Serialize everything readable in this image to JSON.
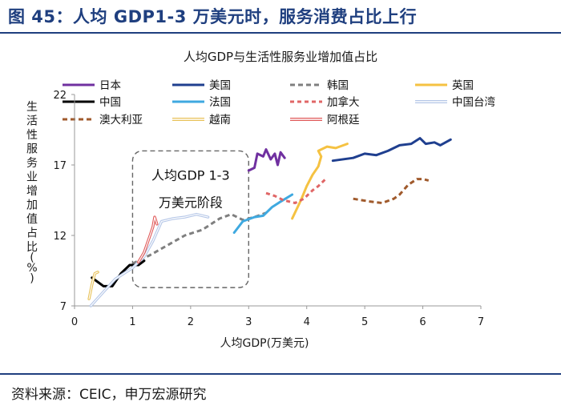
{
  "figure_title": "图 45：人均 GDP1-3 万美元时，服务消费占比上行",
  "source": "资料来源：CEIC，申万宏源研究",
  "chart_data": {
    "type": "line",
    "title": "人均GDP与生活性服务业增加值占比",
    "xlabel": "人均GDP(万美元)",
    "ylabel": "生活性服务业增加值占比(%)",
    "xlim": [
      0,
      7
    ],
    "ylim": [
      7,
      22
    ],
    "xticks": [
      0,
      1,
      2,
      3,
      4,
      5,
      6,
      7
    ],
    "yticks": [
      7,
      12,
      17,
      22
    ],
    "annotation": {
      "line1": "人均GDP 1-3",
      "line2": "万美元阶段",
      "x_range": [
        1.0,
        3.0
      ],
      "y_range": [
        8.3,
        18.0
      ]
    },
    "series": [
      {
        "name": "日本",
        "color": "#7030a0",
        "dash": "",
        "double": false,
        "width": 3,
        "points": [
          [
            3.0,
            16.6
          ],
          [
            3.1,
            16.8
          ],
          [
            3.15,
            17.8
          ],
          [
            3.25,
            17.6
          ],
          [
            3.3,
            18.1
          ],
          [
            3.38,
            17.4
          ],
          [
            3.45,
            17.8
          ],
          [
            3.5,
            17.0
          ],
          [
            3.55,
            17.9
          ],
          [
            3.62,
            17.5
          ]
        ]
      },
      {
        "name": "美国",
        "color": "#1f3f8f",
        "dash": "",
        "double": false,
        "width": 3,
        "points": [
          [
            4.45,
            17.3
          ],
          [
            4.8,
            17.5
          ],
          [
            5.0,
            17.8
          ],
          [
            5.2,
            17.7
          ],
          [
            5.4,
            18.0
          ],
          [
            5.6,
            18.4
          ],
          [
            5.8,
            18.5
          ],
          [
            5.95,
            18.9
          ],
          [
            6.05,
            18.5
          ],
          [
            6.2,
            18.6
          ],
          [
            6.3,
            18.4
          ],
          [
            6.48,
            18.8
          ]
        ]
      },
      {
        "name": "韩国",
        "color": "#7f7f7f",
        "dash": "6,4",
        "double": false,
        "width": 3,
        "points": [
          [
            1.0,
            10.0
          ],
          [
            1.3,
            10.6
          ],
          [
            1.6,
            11.3
          ],
          [
            1.9,
            12.0
          ],
          [
            2.2,
            12.4
          ],
          [
            2.5,
            13.2
          ],
          [
            2.7,
            13.5
          ],
          [
            2.9,
            13.1
          ],
          [
            3.1,
            13.3
          ],
          [
            3.3,
            13.6
          ]
        ]
      },
      {
        "name": "英国",
        "color": "#f5c242",
        "dash": "",
        "double": false,
        "width": 3,
        "points": [
          [
            3.75,
            13.2
          ],
          [
            3.9,
            14.5
          ],
          [
            4.0,
            15.5
          ],
          [
            4.1,
            16.3
          ],
          [
            4.2,
            16.9
          ],
          [
            4.25,
            17.6
          ],
          [
            4.2,
            18.0
          ],
          [
            4.35,
            18.3
          ],
          [
            4.5,
            18.2
          ],
          [
            4.7,
            18.5
          ]
        ]
      },
      {
        "name": "中国",
        "color": "#000000",
        "dash": "",
        "double": false,
        "width": 3,
        "points": [
          [
            0.3,
            9.0
          ],
          [
            0.4,
            8.7
          ],
          [
            0.5,
            8.4
          ],
          [
            0.65,
            8.4
          ],
          [
            0.8,
            9.3
          ],
          [
            0.95,
            9.9
          ],
          [
            1.1,
            9.9
          ],
          [
            1.2,
            10.2
          ]
        ]
      },
      {
        "name": "法国",
        "color": "#3fa9e0",
        "dash": "",
        "double": false,
        "width": 3,
        "points": [
          [
            2.75,
            12.2
          ],
          [
            2.9,
            13.0
          ],
          [
            3.1,
            13.3
          ],
          [
            3.25,
            13.4
          ],
          [
            3.4,
            14.0
          ],
          [
            3.55,
            14.4
          ],
          [
            3.75,
            14.9
          ]
        ]
      },
      {
        "name": "加拿大",
        "color": "#e06666",
        "dash": "5,4",
        "double": false,
        "width": 3,
        "points": [
          [
            3.3,
            15.0
          ],
          [
            3.45,
            14.8
          ],
          [
            3.6,
            14.5
          ],
          [
            3.8,
            14.3
          ],
          [
            3.95,
            14.6
          ],
          [
            4.1,
            15.2
          ],
          [
            4.2,
            15.5
          ],
          [
            4.35,
            16.1
          ]
        ]
      },
      {
        "name": "中国台湾",
        "color": "#b4c6e7",
        "dash": "",
        "double": true,
        "width": 3,
        "points": [
          [
            0.28,
            7.0
          ],
          [
            0.5,
            8.0
          ],
          [
            0.7,
            8.9
          ],
          [
            1.0,
            9.7
          ],
          [
            1.2,
            10.5
          ],
          [
            1.35,
            11.6
          ],
          [
            1.5,
            13.0
          ],
          [
            1.7,
            13.2
          ],
          [
            1.9,
            13.3
          ],
          [
            2.1,
            13.5
          ],
          [
            2.3,
            13.3
          ]
        ]
      },
      {
        "name": "澳大利亚",
        "color": "#a05a2c",
        "dash": "6,4",
        "double": false,
        "width": 3,
        "points": [
          [
            4.8,
            14.6
          ],
          [
            5.1,
            14.4
          ],
          [
            5.3,
            14.3
          ],
          [
            5.5,
            14.6
          ],
          [
            5.6,
            14.9
          ],
          [
            5.75,
            15.6
          ],
          [
            5.9,
            16.0
          ],
          [
            6.0,
            16.0
          ],
          [
            6.1,
            15.9
          ]
        ]
      },
      {
        "name": "越南",
        "color": "#e8c25a",
        "dash": "",
        "double": true,
        "width": 3,
        "points": [
          [
            0.25,
            7.5
          ],
          [
            0.3,
            8.5
          ],
          [
            0.35,
            9.3
          ],
          [
            0.4,
            9.4
          ]
        ]
      },
      {
        "name": "阿根廷",
        "color": "#e05a5a",
        "dash": "",
        "double": true,
        "width": 3,
        "points": [
          [
            1.1,
            10.1
          ],
          [
            1.2,
            10.8
          ],
          [
            1.3,
            12.0
          ],
          [
            1.35,
            12.6
          ],
          [
            1.38,
            13.3
          ],
          [
            1.42,
            12.8
          ]
        ]
      }
    ]
  }
}
